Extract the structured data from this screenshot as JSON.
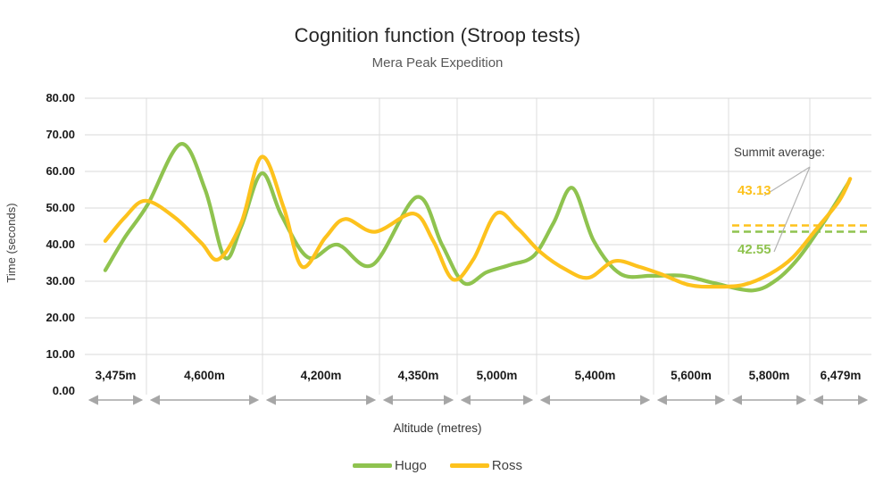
{
  "title": "Cognition function (Stroop tests)",
  "subtitle": "Mera Peak Expedition",
  "y_axis": {
    "label": "Time (seconds)",
    "ticks": [
      "80.00",
      "70.00",
      "60.00",
      "50.00",
      "40.00",
      "30.00",
      "20.00",
      "10.00",
      "0.00"
    ]
  },
  "x_axis": {
    "label": "Altitude (metres)",
    "categories": [
      "3,475m",
      "4,600m",
      "4,200m",
      "4,350m",
      "5,000m",
      "5,400m",
      "5,600m",
      "5,800m",
      "6,479m"
    ]
  },
  "legend": [
    {
      "name": "Hugo",
      "color": "#8FC34F"
    },
    {
      "name": "Ross",
      "color": "#FDC21D"
    }
  ],
  "annotation": {
    "label": "Summit average:",
    "ross_value": "43.13",
    "hugo_value": "42.55"
  },
  "chart_data": {
    "type": "line",
    "title": "Cognition function (Stroop tests)",
    "subtitle": "Mera Peak Expedition",
    "xlabel": "Altitude (metres)",
    "ylabel": "Time (seconds)",
    "ylim": [
      0,
      80
    ],
    "y_tick_step": 10,
    "grid": true,
    "smoothing": true,
    "legend_position": "bottom",
    "x_categories": [
      "3,475m",
      "4,600m",
      "4,200m",
      "4,350m",
      "5,000m",
      "5,400m",
      "5,600m",
      "5,800m",
      "6,479m"
    ],
    "point_format": "[position_percent_along_x, time_seconds]",
    "series": [
      {
        "name": "Hugo",
        "color": "#8FC34F",
        "points": [
          [
            2.6,
            33
          ],
          [
            5.1,
            42
          ],
          [
            8.0,
            51
          ],
          [
            12.2,
            67.5
          ],
          [
            15.3,
            55
          ],
          [
            17.8,
            36.5
          ],
          [
            19.9,
            45
          ],
          [
            22.5,
            59.5
          ],
          [
            25.0,
            48
          ],
          [
            28.4,
            36.5
          ],
          [
            32.1,
            40
          ],
          [
            36.6,
            34.5
          ],
          [
            42.2,
            53
          ],
          [
            45.4,
            40
          ],
          [
            48.2,
            29.5
          ],
          [
            51.1,
            32.5
          ],
          [
            54.1,
            34.5
          ],
          [
            57.1,
            37
          ],
          [
            59.6,
            46
          ],
          [
            62.0,
            55.5
          ],
          [
            64.7,
            41
          ],
          [
            68.1,
            32
          ],
          [
            72.1,
            31.5
          ],
          [
            76.1,
            31.5
          ],
          [
            80.0,
            29.5
          ],
          [
            84.9,
            27.5
          ],
          [
            88.0,
            30.5
          ],
          [
            90.8,
            36.5
          ],
          [
            93.9,
            46
          ],
          [
            97.1,
            57
          ]
        ]
      },
      {
        "name": "Ross",
        "color": "#FDC21D",
        "points": [
          [
            2.6,
            41
          ],
          [
            5.1,
            47.5
          ],
          [
            7.7,
            52
          ],
          [
            11.4,
            47.5
          ],
          [
            14.8,
            40.5
          ],
          [
            17.0,
            36
          ],
          [
            19.9,
            46
          ],
          [
            22.5,
            64
          ],
          [
            25.3,
            50
          ],
          [
            27.6,
            34
          ],
          [
            30.6,
            42
          ],
          [
            33.1,
            47
          ],
          [
            36.9,
            43.5
          ],
          [
            41.8,
            48.5
          ],
          [
            44.3,
            41
          ],
          [
            46.8,
            30.5
          ],
          [
            49.4,
            36
          ],
          [
            52.3,
            48.5
          ],
          [
            55.0,
            44.5
          ],
          [
            57.9,
            38
          ],
          [
            61.3,
            33
          ],
          [
            64.1,
            31
          ],
          [
            67.3,
            35.5
          ],
          [
            70.4,
            34
          ],
          [
            73.2,
            32
          ],
          [
            76.8,
            29
          ],
          [
            80.2,
            28.5
          ],
          [
            83.7,
            29
          ],
          [
            87.1,
            32
          ],
          [
            90.0,
            36.5
          ],
          [
            93.1,
            44.5
          ],
          [
            95.9,
            52
          ],
          [
            97.3,
            58
          ]
        ]
      }
    ],
    "annotations": {
      "label": "Summit average:",
      "reference_lines": [
        {
          "series": "Ross",
          "value": 43.13,
          "style": "dashed",
          "color": "#FDC21D"
        },
        {
          "series": "Hugo",
          "value": 42.55,
          "style": "dashed",
          "color": "#8FC34F"
        }
      ]
    }
  }
}
